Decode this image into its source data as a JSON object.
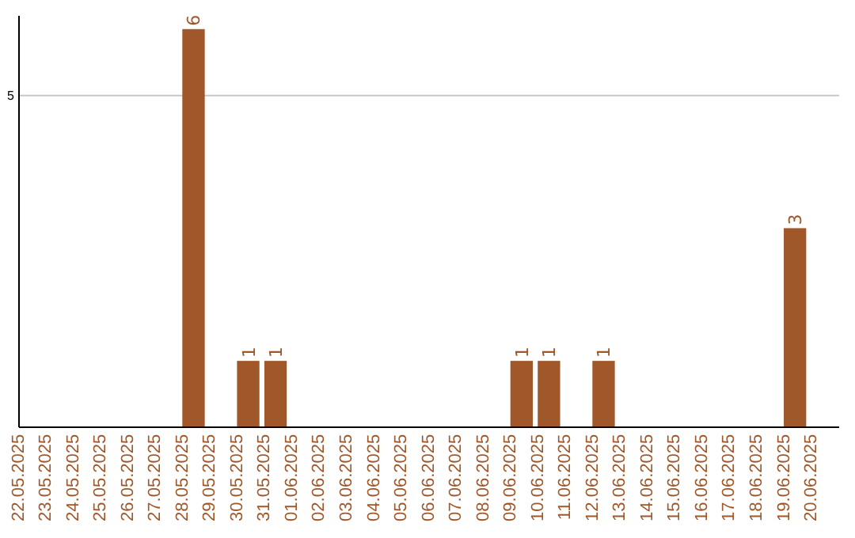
{
  "chart_data": {
    "type": "bar",
    "categories": [
      "22.05.2025",
      "23.05.2025",
      "24.05.2025",
      "25.05.2025",
      "26.05.2025",
      "27.05.2025",
      "28.05.2025",
      "29.05.2025",
      "30.05.2025",
      "31.05.2025",
      "01.06.2025",
      "02.06.2025",
      "03.06.2025",
      "04.06.2025",
      "05.06.2025",
      "06.06.2025",
      "07.06.2025",
      "08.06.2025",
      "09.06.2025",
      "10.06.2025",
      "11.06.2025",
      "12.06.2025",
      "13.06.2025",
      "14.06.2025",
      "15.06.2025",
      "16.06.2025",
      "17.06.2025",
      "18.06.2025",
      "19.06.2025",
      "20.06.2025"
    ],
    "values": [
      0,
      0,
      0,
      0,
      0,
      0,
      6,
      0,
      1,
      1,
      0,
      0,
      0,
      0,
      0,
      0,
      0,
      0,
      1,
      1,
      0,
      1,
      0,
      0,
      0,
      0,
      0,
      0,
      3,
      0
    ],
    "value_labels": [
      null,
      null,
      null,
      null,
      null,
      null,
      "6",
      null,
      "1",
      "1",
      null,
      null,
      null,
      null,
      null,
      null,
      null,
      null,
      "1",
      "1",
      null,
      "1",
      null,
      null,
      null,
      null,
      null,
      null,
      "3",
      null
    ],
    "color": "#a0582b",
    "ylim": [
      0,
      6.2
    ],
    "yticks": [
      5
    ],
    "grid": "y"
  }
}
